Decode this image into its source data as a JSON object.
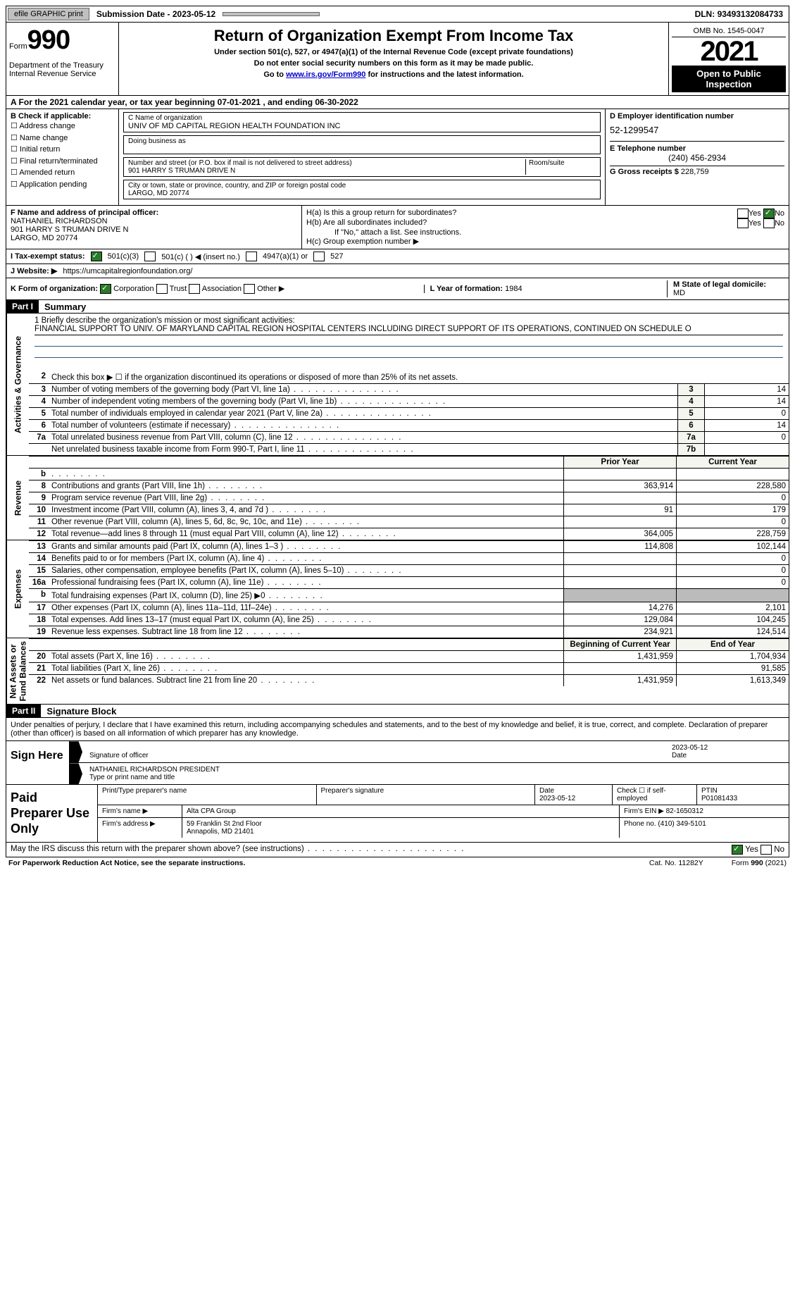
{
  "topbar": {
    "efile": "efile GRAPHIC print",
    "sub_label": "Submission Date - ",
    "sub_date": "2023-05-12",
    "dln_label": "DLN: ",
    "dln": "93493132084733"
  },
  "header": {
    "form_label": "Form",
    "form_num": "990",
    "dept": "Department of the Treasury\nInternal Revenue Service",
    "title": "Return of Organization Exempt From Income Tax",
    "subtitle": "Under section 501(c), 527, or 4947(a)(1) of the Internal Revenue Code (except private foundations)",
    "instr1": "Do not enter social security numbers on this form as it may be made public.",
    "instr2_pre": "Go to ",
    "instr2_link": "www.irs.gov/Form990",
    "instr2_post": " for instructions and the latest information.",
    "omb": "OMB No. 1545-0047",
    "year": "2021",
    "open": "Open to Public Inspection"
  },
  "period": {
    "line": "A  For the 2021 calendar year, or tax year beginning 07-01-2021   , and ending 06-30-2022"
  },
  "boxB": {
    "label": "B Check if applicable:",
    "opts": [
      "Address change",
      "Name change",
      "Initial return",
      "Final return/terminated",
      "Amended return",
      "Application pending"
    ]
  },
  "boxC": {
    "name_lbl": "C Name of organization",
    "name": "UNIV OF MD CAPITAL REGION HEALTH FOUNDATION INC",
    "dba_lbl": "Doing business as",
    "addr_lbl": "Number and street (or P.O. box if mail is not delivered to street address)",
    "addr": "901 HARRY S TRUMAN DRIVE N",
    "room_lbl": "Room/suite",
    "city_lbl": "City or town, state or province, country, and ZIP or foreign postal code",
    "city": "LARGO, MD  20774"
  },
  "boxD": {
    "lbl": "D Employer identification number",
    "val": "52-1299547"
  },
  "boxE": {
    "lbl": "E Telephone number",
    "val": "(240) 456-2934"
  },
  "boxG": {
    "lbl": "G Gross receipts $ ",
    "val": "228,759"
  },
  "boxF": {
    "lbl": "F Name and address of principal officer:",
    "name": "NATHANIEL RICHARDSON",
    "addr1": "901 HARRY S TRUMAN DRIVE N",
    "addr2": "LARGO, MD  20774"
  },
  "boxH": {
    "a": "H(a)  Is this a group return for subordinates?",
    "b": "H(b)  Are all subordinates included?",
    "note": "If \"No,\" attach a list. See instructions.",
    "c": "H(c)  Group exemption number ▶",
    "yes": "Yes",
    "no": "No"
  },
  "status": {
    "lbl": "I   Tax-exempt status:",
    "o1": "501(c)(3)",
    "o2": "501(c) (   ) ◀ (insert no.)",
    "o3": "4947(a)(1) or",
    "o4": "527"
  },
  "web": {
    "lbl": "J   Website: ▶",
    "val": "https://umcapitalregionfoundation.org/"
  },
  "korg": {
    "k": "K Form of organization:",
    "opts": [
      "Corporation",
      "Trust",
      "Association",
      "Other ▶"
    ],
    "l": "L Year of formation: ",
    "lval": "1984",
    "m": "M State of legal domicile:",
    "mval": "MD"
  },
  "part1": {
    "num": "Part I",
    "title": "Summary"
  },
  "mission": {
    "lbl": "1   Briefly describe the organization's mission or most significant activities:",
    "text": "FINANCIAL SUPPORT TO UNIV. OF MARYLAND CAPITAL REGION HOSPITAL CENTERS INCLUDING DIRECT SUPPORT OF ITS OPERATIONS, CONTINUED ON SCHEDULE O"
  },
  "gov_lines": [
    {
      "n": "2",
      "t": "Check this box ▶ ☐  if the organization discontinued its operations or disposed of more than 25% of its net assets.",
      "bx": "",
      "v": ""
    },
    {
      "n": "3",
      "t": "Number of voting members of the governing body (Part VI, line 1a)",
      "bx": "3",
      "v": "14"
    },
    {
      "n": "4",
      "t": "Number of independent voting members of the governing body (Part VI, line 1b)",
      "bx": "4",
      "v": "14"
    },
    {
      "n": "5",
      "t": "Total number of individuals employed in calendar year 2021 (Part V, line 2a)",
      "bx": "5",
      "v": "0"
    },
    {
      "n": "6",
      "t": "Total number of volunteers (estimate if necessary)",
      "bx": "6",
      "v": "14"
    },
    {
      "n": "7a",
      "t": "Total unrelated business revenue from Part VIII, column (C), line 12",
      "bx": "7a",
      "v": "0"
    },
    {
      "n": "",
      "t": "Net unrelated business taxable income from Form 990-T, Part I, line 11",
      "bx": "7b",
      "v": ""
    }
  ],
  "vert": {
    "gov": "Activities & Governance",
    "rev": "Revenue",
    "exp": "Expenses",
    "net": "Net Assets or\nFund Balances"
  },
  "colhdr": {
    "prior": "Prior Year",
    "curr": "Current Year",
    "beg": "Beginning of Current Year",
    "end": "End of Year"
  },
  "rev_lines": [
    {
      "n": "b",
      "t": "",
      "p": "",
      "c": ""
    },
    {
      "n": "8",
      "t": "Contributions and grants (Part VIII, line 1h)",
      "p": "363,914",
      "c": "228,580"
    },
    {
      "n": "9",
      "t": "Program service revenue (Part VIII, line 2g)",
      "p": "",
      "c": "0"
    },
    {
      "n": "10",
      "t": "Investment income (Part VIII, column (A), lines 3, 4, and 7d )",
      "p": "91",
      "c": "179"
    },
    {
      "n": "11",
      "t": "Other revenue (Part VIII, column (A), lines 5, 6d, 8c, 9c, 10c, and 11e)",
      "p": "",
      "c": "0"
    },
    {
      "n": "12",
      "t": "Total revenue—add lines 8 through 11 (must equal Part VIII, column (A), line 12)",
      "p": "364,005",
      "c": "228,759"
    }
  ],
  "exp_lines": [
    {
      "n": "13",
      "t": "Grants and similar amounts paid (Part IX, column (A), lines 1–3 )",
      "p": "114,808",
      "c": "102,144"
    },
    {
      "n": "14",
      "t": "Benefits paid to or for members (Part IX, column (A), line 4)",
      "p": "",
      "c": "0"
    },
    {
      "n": "15",
      "t": "Salaries, other compensation, employee benefits (Part IX, column (A), lines 5–10)",
      "p": "",
      "c": "0"
    },
    {
      "n": "16a",
      "t": "Professional fundraising fees (Part IX, column (A), line 11e)",
      "p": "",
      "c": "0"
    },
    {
      "n": "b",
      "t": "Total fundraising expenses (Part IX, column (D), line 25) ▶0",
      "p": "SHADE",
      "c": "SHADE"
    },
    {
      "n": "17",
      "t": "Other expenses (Part IX, column (A), lines 11a–11d, 11f–24e)",
      "p": "14,276",
      "c": "2,101"
    },
    {
      "n": "18",
      "t": "Total expenses. Add lines 13–17 (must equal Part IX, column (A), line 25)",
      "p": "129,084",
      "c": "104,245"
    },
    {
      "n": "19",
      "t": "Revenue less expenses. Subtract line 18 from line 12",
      "p": "234,921",
      "c": "124,514"
    }
  ],
  "net_lines": [
    {
      "n": "20",
      "t": "Total assets (Part X, line 16)",
      "p": "1,431,959",
      "c": "1,704,934"
    },
    {
      "n": "21",
      "t": "Total liabilities (Part X, line 26)",
      "p": "",
      "c": "91,585"
    },
    {
      "n": "22",
      "t": "Net assets or fund balances. Subtract line 21 from line 20",
      "p": "1,431,959",
      "c": "1,613,349"
    }
  ],
  "part2": {
    "num": "Part II",
    "title": "Signature Block"
  },
  "sig": {
    "decl": "Under penalties of perjury, I declare that I have examined this return, including accompanying schedules and statements, and to the best of my knowledge and belief, it is true, correct, and complete. Declaration of preparer (other than officer) is based on all information of which preparer has any knowledge.",
    "here": "Sign Here",
    "sig_lbl": "Signature of officer",
    "date_lbl": "Date",
    "date": "2023-05-12",
    "name": "NATHANIEL RICHARDSON  PRESIDENT",
    "name_lbl": "Type or print name and title"
  },
  "prep": {
    "lbl": "Paid Preparer Use Only",
    "r1": [
      "Print/Type preparer's name",
      "Preparer's signature",
      "Date\n2023-05-12",
      "Check ☐ if self-employed",
      "PTIN\nP01081433"
    ],
    "firm_lbl": "Firm's name   ▶",
    "firm": "Alta CPA Group",
    "ein_lbl": "Firm's EIN ▶ ",
    "ein": "82-1650312",
    "addr_lbl": "Firm's address ▶",
    "addr": "59 Franklin St 2nd Floor\nAnnapolis, MD  21401",
    "ph_lbl": "Phone no. ",
    "ph": "(410) 349-5101"
  },
  "discuss": {
    "q": "May the IRS discuss this return with the preparer shown above? (see instructions)",
    "yes": "Yes",
    "no": "No"
  },
  "footer": {
    "pra": "For Paperwork Reduction Act Notice, see the separate instructions.",
    "cat": "Cat. No. 11282Y",
    "form": "Form 990 (2021)"
  }
}
